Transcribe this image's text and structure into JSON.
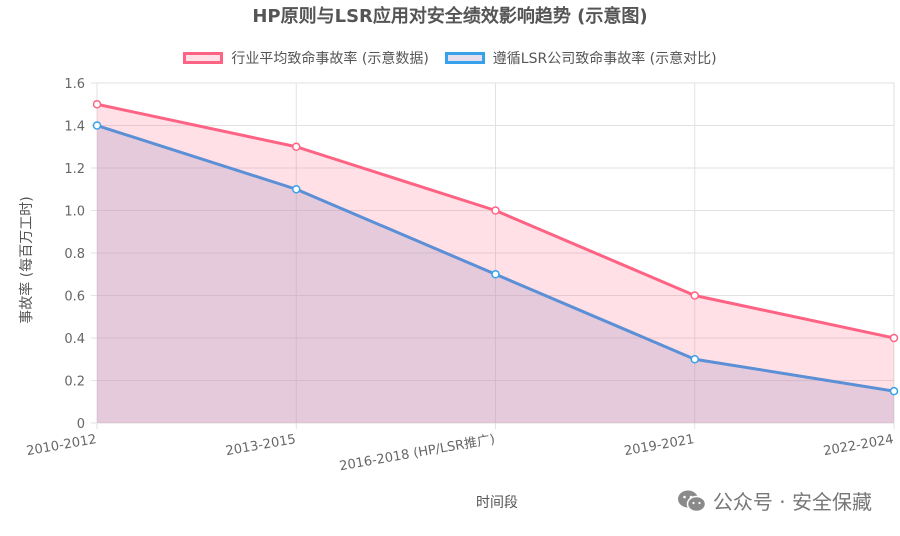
{
  "chart_data": {
    "type": "line",
    "title": "HP原则与LSR应用对安全绩效影响趋势 (示意图)",
    "xlabel": "时间段",
    "ylabel": "事故率 (每百万工时)",
    "categories": [
      "2010-2012",
      "2013-2015",
      "2016-2018 (HP/LSR推广)",
      "2019-2021",
      "2022-2024"
    ],
    "ylim": [
      0,
      1.6
    ],
    "yticks": [
      "0",
      "0.2",
      "0.4",
      "0.6",
      "0.8",
      "1.0",
      "1.2",
      "1.4",
      "1.6"
    ],
    "grid": true,
    "legend_position": "top",
    "series": [
      {
        "name": "行业平均致命事故率 (示意数据)",
        "values": [
          1.5,
          1.3,
          1.0,
          0.6,
          0.4
        ],
        "color": "#ff6384",
        "fill": "rgba(255,99,132,0.2)"
      },
      {
        "name": "遵循LSR公司致命事故率 (示意对比)",
        "values": [
          1.4,
          1.1,
          0.7,
          0.3,
          0.15
        ],
        "color": "#36a2eb",
        "line_color": "#5b8fd6",
        "fill": "rgba(180,160,200,0.35)"
      }
    ]
  },
  "watermark": {
    "text": "公众号 · 安全保藏",
    "icon": "wechat-icon"
  }
}
